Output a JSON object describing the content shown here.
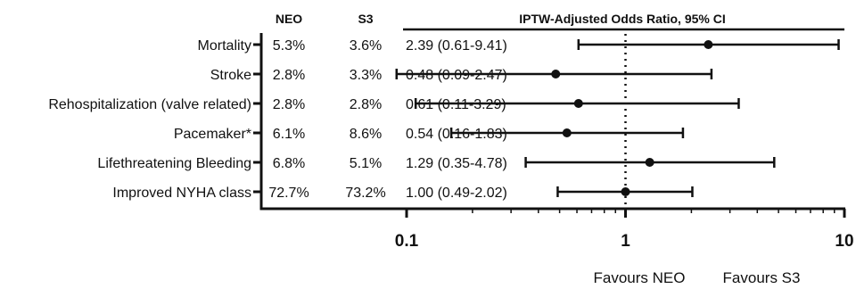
{
  "chart_data": {
    "type": "forest",
    "columns": {
      "neo": "NEO",
      "s3": "S3",
      "or_header": "IPTW-Adjusted Odds Ratio, 95% CI"
    },
    "x_scale": "log",
    "xlim": [
      0.1,
      10
    ],
    "x_ticks": [
      {
        "value": 0.1,
        "label": "0.1"
      },
      {
        "value": 1,
        "label": "1"
      },
      {
        "value": 10,
        "label": "10"
      }
    ],
    "reference_line": 1,
    "favours": {
      "left": "Favours NEO",
      "right": "Favours S3"
    },
    "rows": [
      {
        "label": "Mortality",
        "neo": "5.3%",
        "s3": "3.6%",
        "or_text": "2.39 (0.61-9.41)",
        "or": 2.39,
        "lo": 0.61,
        "hi": 9.41
      },
      {
        "label": "Stroke",
        "neo": "2.8%",
        "s3": "3.3%",
        "or_text": "0.48 (0.09-2.47)",
        "or": 0.48,
        "lo": 0.09,
        "hi": 2.47
      },
      {
        "label": "Rehospitalization (valve related)",
        "neo": "2.8%",
        "s3": "2.8%",
        "or_text": "0.61 (0.11-3.29)",
        "or": 0.61,
        "lo": 0.11,
        "hi": 3.29
      },
      {
        "label": "Pacemaker*",
        "neo": "6.1%",
        "s3": "8.6%",
        "or_text": "0.54 (0.16-1.83)",
        "or": 0.54,
        "lo": 0.16,
        "hi": 1.83
      },
      {
        "label": "Lifethreatening Bleeding",
        "neo": "6.8%",
        "s3": "5.1%",
        "or_text": "1.29 (0.35-4.78)",
        "or": 1.29,
        "lo": 0.35,
        "hi": 4.78
      },
      {
        "label": "Improved NYHA class",
        "neo": "72.7%",
        "s3": "73.2%",
        "or_text": "1.00 (0.49-2.02)",
        "or": 1.0,
        "lo": 0.49,
        "hi": 2.02
      }
    ]
  }
}
